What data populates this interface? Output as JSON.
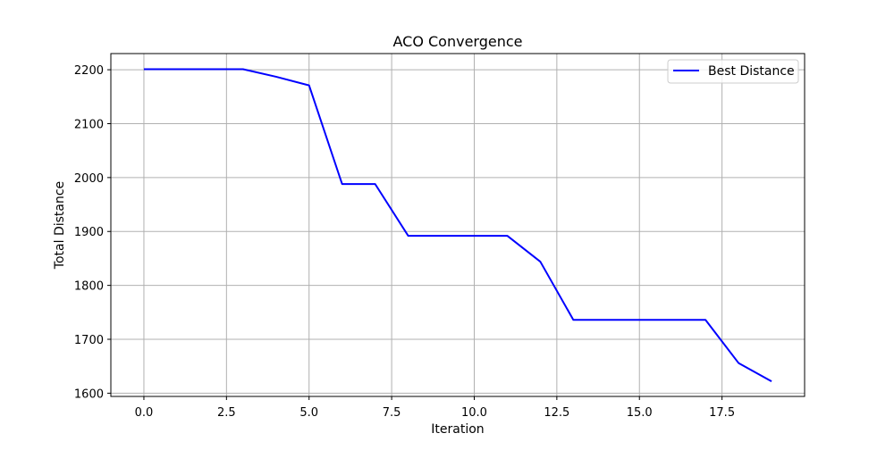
{
  "chart_data": {
    "type": "line",
    "title": "ACO Convergence",
    "xlabel": "Iteration",
    "ylabel": "Total Distance",
    "xlim": [
      -1.0,
      20.0
    ],
    "ylim": [
      1594,
      2230
    ],
    "xticks": [
      0.0,
      2.5,
      5.0,
      7.5,
      10.0,
      12.5,
      15.0,
      17.5
    ],
    "xtick_labels": [
      "0.0",
      "2.5",
      "5.0",
      "7.5",
      "10.0",
      "12.5",
      "15.0",
      "17.5"
    ],
    "yticks": [
      1600,
      1700,
      1800,
      1900,
      2000,
      2100,
      2200
    ],
    "ytick_labels": [
      "1600",
      "1700",
      "1800",
      "1900",
      "2000",
      "2100",
      "2200"
    ],
    "grid": true,
    "legend_position": "top-right",
    "series": [
      {
        "name": "Best Distance",
        "color": "#0000ff",
        "x": [
          0,
          1,
          2,
          3,
          4,
          5,
          6,
          7,
          8,
          9,
          10,
          11,
          12,
          13,
          14,
          15,
          16,
          17,
          18,
          19
        ],
        "y": [
          2201,
          2201,
          2201,
          2201,
          2187,
          2171,
          1988,
          1988,
          1892,
          1892,
          1892,
          1892,
          1844,
          1736,
          1736,
          1736,
          1736,
          1736,
          1656,
          1622
        ]
      }
    ]
  }
}
